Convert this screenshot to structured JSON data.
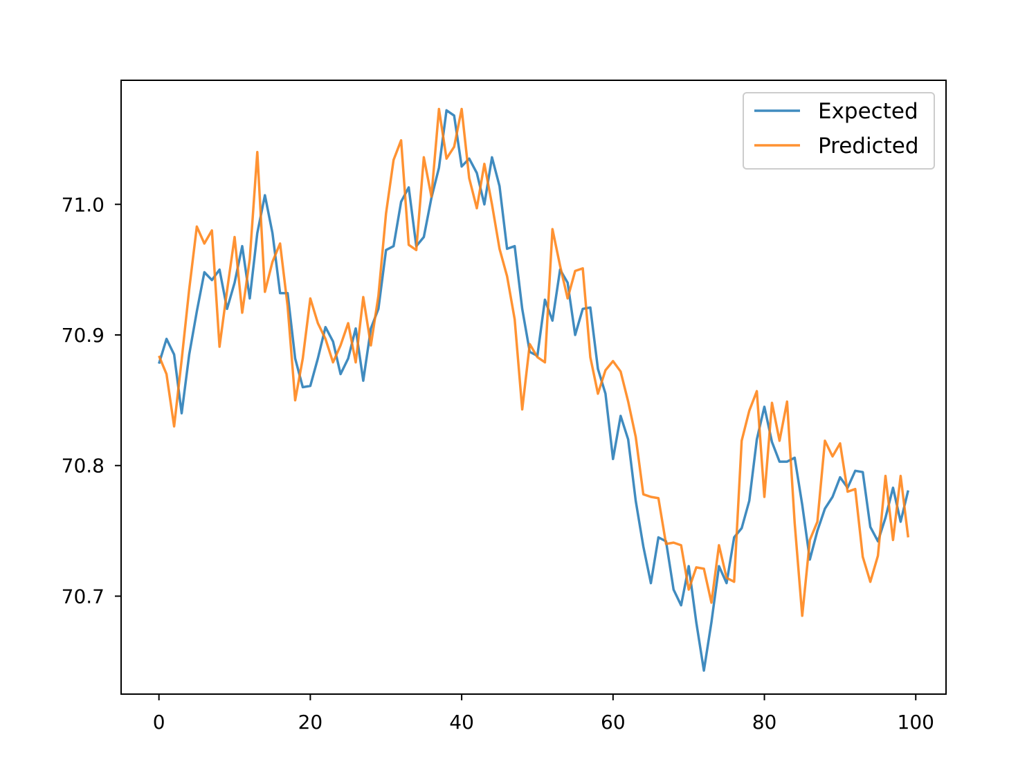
{
  "chart_data": {
    "type": "line",
    "title": "",
    "xlabel": "",
    "ylabel": "",
    "xlim": [
      -5,
      104
    ],
    "ylim": [
      70.625,
      71.095
    ],
    "xticks": [
      0,
      20,
      40,
      60,
      80,
      100
    ],
    "yticks": [
      70.7,
      70.8,
      70.9,
      71.0
    ],
    "grid": false,
    "legend": {
      "position": "top-right",
      "entries": [
        "Expected",
        "Predicted"
      ]
    },
    "series": [
      {
        "name": "Expected",
        "color": "#1f77b4",
        "x": [
          0,
          1,
          2,
          3,
          4,
          5,
          6,
          7,
          8,
          9,
          10,
          11,
          12,
          13,
          14,
          15,
          16,
          17,
          18,
          19,
          20,
          21,
          22,
          23,
          24,
          25,
          26,
          27,
          28,
          29,
          30,
          31,
          32,
          33,
          34,
          35,
          36,
          37,
          38,
          39,
          40,
          41,
          42,
          43,
          44,
          45,
          46,
          47,
          48,
          49,
          50,
          51,
          52,
          53,
          54,
          55,
          56,
          57,
          58,
          59,
          60,
          61,
          62,
          63,
          64,
          65,
          66,
          67,
          68,
          69,
          70,
          71,
          72,
          73,
          74,
          75,
          76,
          77,
          78,
          79,
          80,
          81,
          82,
          83,
          84,
          85,
          86,
          87,
          88,
          89,
          90,
          91,
          92,
          93,
          94,
          95,
          96,
          97,
          98,
          99
        ],
        "values": [
          70.878,
          70.897,
          70.885,
          70.84,
          70.885,
          70.918,
          70.948,
          70.942,
          70.95,
          70.92,
          70.94,
          70.968,
          70.928,
          70.978,
          71.007,
          70.978,
          70.932,
          70.932,
          70.882,
          70.86,
          70.861,
          70.882,
          70.906,
          70.895,
          70.87,
          70.882,
          70.905,
          70.865,
          70.905,
          70.92,
          70.965,
          70.968,
          71.002,
          71.013,
          70.968,
          70.975,
          71.005,
          71.028,
          71.072,
          71.068,
          71.029,
          71.035,
          71.024,
          71.0,
          71.036,
          71.014,
          70.966,
          70.968,
          70.92,
          70.887,
          70.884,
          70.927,
          70.911,
          70.95,
          70.94,
          70.9,
          70.92,
          70.921,
          70.874,
          70.855,
          70.805,
          70.838,
          70.82,
          70.773,
          70.738,
          70.71,
          70.745,
          70.742,
          70.705,
          70.693,
          70.723,
          70.68,
          70.643,
          70.68,
          70.723,
          70.71,
          70.745,
          70.752,
          70.773,
          70.82,
          70.845,
          70.818,
          70.803,
          70.803,
          70.806,
          70.77,
          70.728,
          70.75,
          70.767,
          70.776,
          70.791,
          70.783,
          70.796,
          70.795,
          70.753,
          70.742,
          70.76,
          70.783,
          70.757,
          70.781
        ]
      },
      {
        "name": "Predicted",
        "color": "#ff7f0e",
        "x": [
          0,
          1,
          2,
          3,
          4,
          5,
          6,
          7,
          8,
          9,
          10,
          11,
          12,
          13,
          14,
          15,
          16,
          17,
          18,
          19,
          20,
          21,
          22,
          23,
          24,
          25,
          26,
          27,
          28,
          29,
          30,
          31,
          32,
          33,
          34,
          35,
          36,
          37,
          38,
          39,
          40,
          41,
          42,
          43,
          44,
          45,
          46,
          47,
          48,
          49,
          50,
          51,
          52,
          53,
          54,
          55,
          56,
          57,
          58,
          59,
          60,
          61,
          62,
          63,
          64,
          65,
          66,
          67,
          68,
          69,
          70,
          71,
          72,
          73,
          74,
          75,
          76,
          77,
          78,
          79,
          80,
          81,
          82,
          83,
          84,
          85,
          86,
          87,
          88,
          89,
          90,
          91,
          92,
          93,
          94,
          95,
          96,
          97,
          98,
          99
        ],
        "values": [
          70.884,
          70.87,
          70.83,
          70.881,
          70.935,
          70.983,
          70.97,
          70.98,
          70.891,
          70.934,
          70.975,
          70.917,
          70.958,
          71.04,
          70.933,
          70.956,
          70.97,
          70.922,
          70.85,
          70.882,
          70.928,
          70.909,
          70.897,
          70.879,
          70.892,
          70.909,
          70.879,
          70.929,
          70.892,
          70.93,
          70.993,
          71.034,
          71.049,
          70.969,
          70.965,
          71.036,
          71.006,
          71.073,
          71.035,
          71.044,
          71.073,
          71.02,
          70.997,
          71.031,
          71.0,
          70.966,
          70.945,
          70.912,
          70.843,
          70.893,
          70.883,
          70.879,
          70.981,
          70.953,
          70.928,
          70.949,
          70.951,
          70.883,
          70.855,
          70.873,
          70.88,
          70.872,
          70.849,
          70.822,
          70.778,
          70.776,
          70.775,
          70.74,
          70.741,
          70.739,
          70.705,
          70.722,
          70.721,
          70.695,
          70.739,
          70.714,
          70.711,
          70.819,
          70.842,
          70.857,
          70.776,
          70.848,
          70.819,
          70.849,
          70.756,
          70.685,
          70.743,
          70.757,
          70.819,
          70.807,
          70.817,
          70.78,
          70.782,
          70.73,
          70.711,
          70.731,
          70.792,
          70.743,
          70.792,
          70.745
        ]
      }
    ]
  }
}
